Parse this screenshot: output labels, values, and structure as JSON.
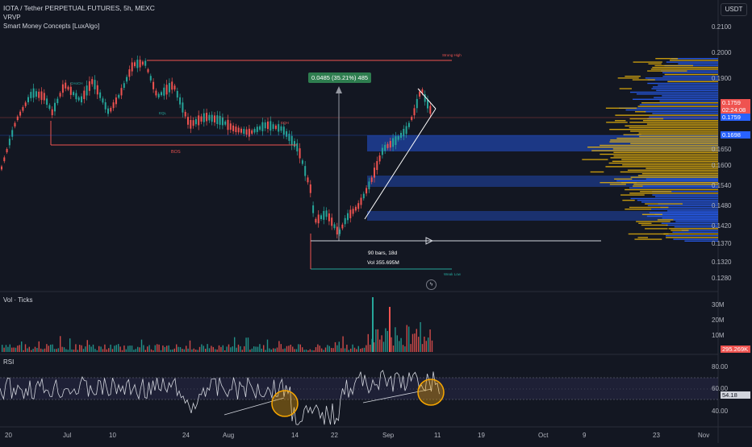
{
  "header": {
    "symbol_line": "IOTA / Tether PERPETUAL FUTURES, 5h, MEXC",
    "indicator1": "VRVP",
    "indicator2": "Smart Money Concepts [LuxAlgo]",
    "currency_button": "USDT"
  },
  "price_axis": {
    "ticks": [
      "0.2100",
      "0.2000",
      "0.1900",
      "0.1650",
      "0.1600",
      "0.1540",
      "0.1480",
      "0.1420",
      "0.1370",
      "0.1320",
      "0.1280"
    ],
    "current_price": "0.1759",
    "countdown": "02:24:08",
    "price_tag_2": "0.1759",
    "price_tag_3": "0.1698"
  },
  "colors": {
    "background": "#131722",
    "up": "#26a69a",
    "down": "#ef5350",
    "volume_profile_up": "#2962ff",
    "volume_profile_poc": "#f0b90b",
    "measure_green": "#2e7d4f",
    "rsi_band": "#2a2a4a",
    "highlight_circle": "#f7a600"
  },
  "annotations": {
    "measure_label": "0.0485 (35.21%) 485",
    "bars_label": "90 bars, 18d",
    "vol_label": "Vol 355.695M",
    "strong_high": "Strong High",
    "weak_low": "Weak Low",
    "bos_label": "BOS",
    "choch_label": "CHoCH",
    "eqh_label": "EQH",
    "eql_label": "EQL",
    "lightning_icon": "lightning-icon"
  },
  "volume_pane": {
    "title": "Vol · Ticks",
    "ticks": [
      "30M",
      "20M",
      "10M"
    ],
    "current": "295.269K"
  },
  "rsi_pane": {
    "title": "RSI",
    "ticks": [
      "80.00",
      "60.00",
      "40.00"
    ],
    "current": "54.18"
  },
  "time_axis": {
    "dates": [
      "20",
      "Jul",
      "10",
      "24",
      "Aug",
      "14",
      "22",
      "Sep",
      "11",
      "19",
      "Oct",
      "9",
      "23",
      "Nov"
    ]
  }
}
